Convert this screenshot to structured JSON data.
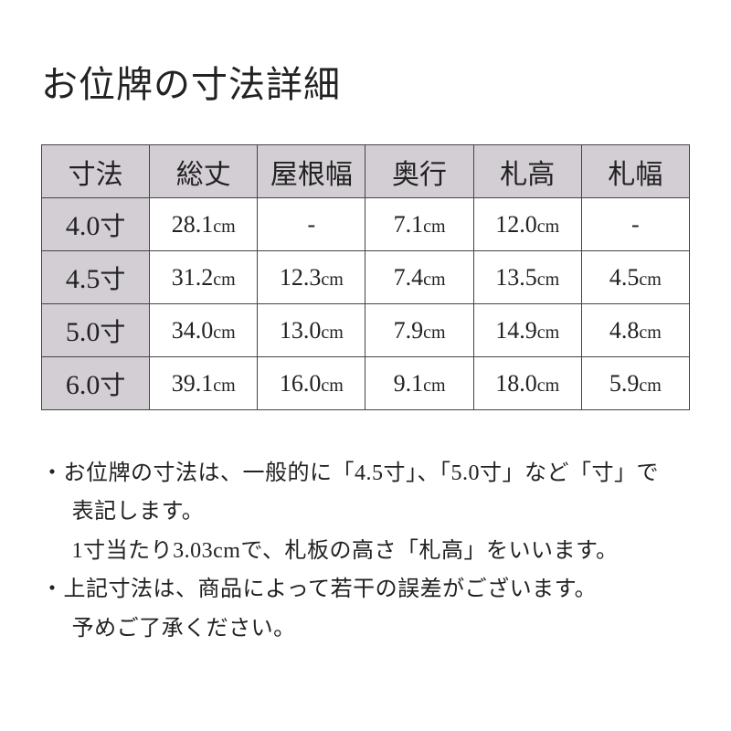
{
  "title": "お位牌の寸法詳細",
  "table": {
    "columns": [
      "寸法",
      "総丈",
      "屋根幅",
      "奥行",
      "札高",
      "札幅"
    ],
    "rows": [
      {
        "size": "4.0",
        "values": [
          "28.1",
          "-",
          "7.1",
          "12.0",
          "-"
        ]
      },
      {
        "size": "4.5",
        "values": [
          "31.2",
          "12.3",
          "7.4",
          "13.5",
          "4.5"
        ]
      },
      {
        "size": "5.0",
        "values": [
          "34.0",
          "13.0",
          "7.9",
          "14.9",
          "4.8"
        ]
      },
      {
        "size": "6.0",
        "values": [
          "39.1",
          "16.0",
          "9.1",
          "18.0",
          "5.9"
        ]
      }
    ],
    "size_unit": "寸",
    "value_unit": "cm",
    "header_bg": "#d3ced4",
    "cell_bg": "#ffffff",
    "border_color": "#444444",
    "header_fontsize": 30,
    "cell_fontsize": 26,
    "unit_fontsize": 20
  },
  "notes": {
    "line1": "・お位牌の寸法は、一般的に「4.5寸」、「5.0寸」など「寸」で",
    "line2": "表記します。",
    "line3": "1寸当たり3.03cmで、札板の高さ「札高」をいいます。",
    "line4": "・上記寸法は、商品によって若干の誤差がございます。",
    "line5": "予めご了承ください。"
  },
  "styling": {
    "background_color": "#ffffff",
    "text_color": "#222222",
    "title_fontsize": 40,
    "notes_fontsize": 24,
    "font_family": "serif-mincho"
  }
}
